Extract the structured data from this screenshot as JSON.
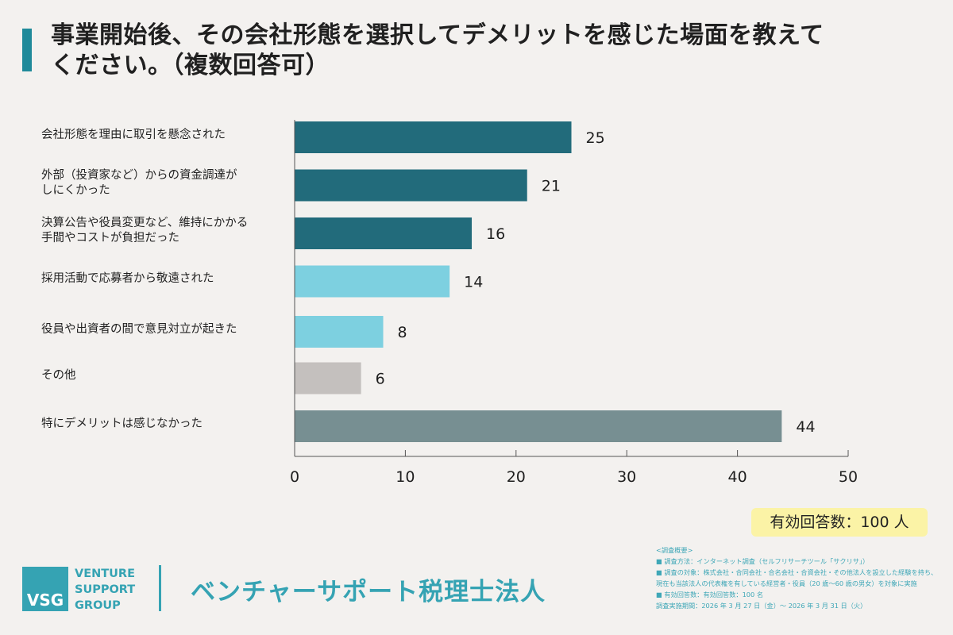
{
  "title": "事業開始後、その会社形態を選択してデメリットを感じた場面を教えてください。（複数回答可）",
  "colors": {
    "dark_teal": "#226b7b",
    "light_cyan": "#7dd0e0",
    "gray": "#c4c0be",
    "slate": "#778f92",
    "accent": "#35a3b3"
  },
  "chart_data": {
    "type": "bar",
    "orientation": "horizontal",
    "categories": [
      "会社形態を理由に取引を懸念された",
      "外部（投資家など）からの資金調達が\nしにくかった",
      "決算公告や役員変更など、維持にかかる\n手間やコストが負担だった",
      "採用活動で応募者から敬遠された",
      "役員や出資者の間で意見対立が起きた",
      "その他",
      "特にデメリットは感じなかった"
    ],
    "values": [
      25,
      21,
      16,
      14,
      8,
      6,
      44
    ],
    "bar_colors": [
      "#226b7b",
      "#226b7b",
      "#226b7b",
      "#7dd0e0",
      "#7dd0e0",
      "#c4c0be",
      "#778f92"
    ],
    "xlim": [
      0,
      50
    ],
    "xticks": [
      0,
      10,
      20,
      30,
      40,
      50
    ],
    "grid": false
  },
  "note": "有効回答数：100 人",
  "footer": {
    "logo_mark": "VSG",
    "logo_lines": [
      "VENTURE",
      "SUPPORT",
      "GROUP"
    ],
    "company": "ベンチャーサポート税理士法人"
  },
  "survey": {
    "heading": "<調査概要>",
    "lines": [
      "■ 調査方法：インターネット調査（セルフリサーチツール「サクリサ」）",
      "■ 調査の対象：株式会社・合同会社・合名会社・合資会社・その他法人を設立した経験を持ち、",
      "現在も当該法人の代表権を有している経営者・役員（20 歳〜60 歳の男女）を対象に実施",
      "■ 有効回答数：有効回答数：100 名",
      "調査実施期間：2026 年 3 月 27 日（金）〜 2026 年 3 月 31 日（火）"
    ]
  }
}
